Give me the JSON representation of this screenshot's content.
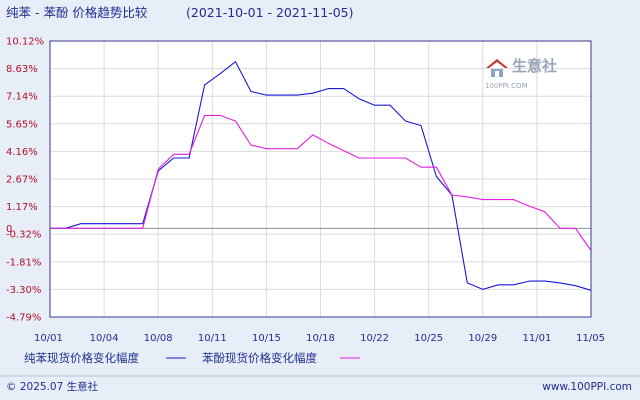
{
  "header": {
    "title": "纯苯 - 苯酚 价格趋势比较",
    "date_range": "(2021-10-01 - 2021-11-05)"
  },
  "watermark": {
    "brand": "生意社",
    "site": "100PPI.COM"
  },
  "footer": {
    "copyright": "© 2025.07 生意社",
    "site": "www.100PPI.com"
  },
  "colors": {
    "background": "#e8eef8",
    "plot_background": "#ffffff",
    "border": "#3a3a8c",
    "grid": "#dcdcdc",
    "zero_line": "#8f8f8f",
    "y_tick_text": "#b0102a",
    "text": "#1f2d8f",
    "series_1": "#1a1ad6",
    "series_2": "#e020e0"
  },
  "chart_data": {
    "type": "line",
    "title": "纯苯 - 苯酚 价格趋势比较",
    "xlabel": "",
    "ylabel": "",
    "ylim": [
      -4.79,
      10.12
    ],
    "y_ticks": [
      "10.12%",
      "8.63%",
      "7.14%",
      "5.65%",
      "4.16%",
      "2.67%",
      "1.17%",
      "-0.32%",
      "-1.81%",
      "-3.30%",
      "-4.79%"
    ],
    "y_zero_tick_label": "0",
    "x_tick_labels": [
      "10/01",
      "10/04",
      "10/08",
      "10/11",
      "10/15",
      "10/18",
      "10/22",
      "10/25",
      "10/29",
      "11/01",
      "11/05"
    ],
    "grid": true,
    "legend_position": "bottom",
    "x": [
      "10/01",
      "10/02",
      "10/03",
      "10/04",
      "10/05",
      "10/06",
      "10/07",
      "10/08",
      "10/09",
      "10/10",
      "10/11",
      "10/12",
      "10/13",
      "10/14",
      "10/15",
      "10/16",
      "10/17",
      "10/18",
      "10/19",
      "10/20",
      "10/21",
      "10/22",
      "10/23",
      "10/24",
      "10/25",
      "10/26",
      "10/27",
      "10/28",
      "10/29",
      "10/30",
      "10/31",
      "11/01",
      "11/02",
      "11/03",
      "11/04",
      "11/05"
    ],
    "series": [
      {
        "name": "纯苯现货价格变化幅度",
        "values": [
          0,
          0,
          0.25,
          0.25,
          0.25,
          0.25,
          0.25,
          3.1,
          3.8,
          3.8,
          7.75,
          8.35,
          9.0,
          7.4,
          7.2,
          7.2,
          7.2,
          7.3,
          7.55,
          7.55,
          7.0,
          6.65,
          6.65,
          5.8,
          5.55,
          2.8,
          1.8,
          -2.95,
          -3.3,
          -3.05,
          -3.05,
          -2.85,
          -2.85,
          -2.95,
          -3.1,
          -3.35
        ]
      },
      {
        "name": "苯酚现货价格变化幅度",
        "values": [
          0,
          0,
          0,
          0,
          0,
          0,
          0,
          3.2,
          4.0,
          4.0,
          6.1,
          6.1,
          5.8,
          4.5,
          4.3,
          4.3,
          4.3,
          5.05,
          4.6,
          4.2,
          3.8,
          3.8,
          3.8,
          3.8,
          3.3,
          3.3,
          1.8,
          1.7,
          1.55,
          1.55,
          1.55,
          1.2,
          0.9,
          0,
          0,
          -1.2
        ]
      }
    ]
  }
}
